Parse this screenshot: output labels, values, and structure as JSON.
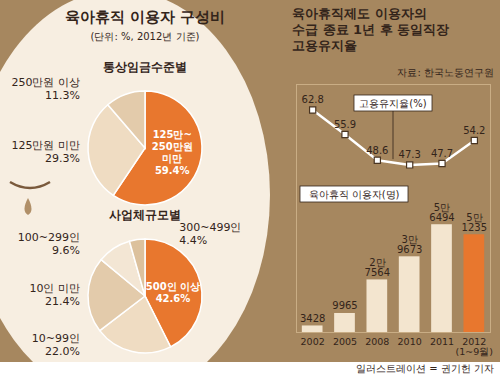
{
  "title": "육아휴직 이용자 구성비",
  "subtitle": "(단위: %, 2012년 기준)",
  "source": "자료: 한국노동연구원",
  "credit": "일러스트레이션 = 권기헌 기자",
  "chart_data": [
    {
      "type": "pie",
      "title": "통상임금수준별",
      "categories": [
        "125만~250만원 미만",
        "125만원 미만",
        "250만원 이상"
      ],
      "values": [
        59.4,
        29.3,
        11.3
      ],
      "value_labels": [
        "59.4%",
        "29.3%",
        "11.3%"
      ],
      "colors": [
        "#e8772e",
        "#efdcc2",
        "#e3cbab"
      ],
      "data_labels": true
    },
    {
      "type": "pie",
      "title": "사업체규모별",
      "categories": [
        "500인 이상",
        "10~99인",
        "10인 미만",
        "100~299인",
        "300~499인"
      ],
      "values": [
        42.6,
        22.0,
        21.4,
        9.6,
        4.4
      ],
      "value_labels": [
        "42.6%",
        "22.0%",
        "21.4%",
        "9.6%",
        "4.4%"
      ],
      "colors": [
        "#e8772e",
        "#efdcc2",
        "#e3cbab",
        "#f3e6d4",
        "#dcc19d"
      ],
      "data_labels": true
    },
    {
      "type": "bar",
      "title": "육아휴직제도 이용자의 수급 종료 1년 후 동일직장 고용유지율",
      "categories": [
        "2002",
        "2005",
        "2008",
        "2010",
        "2011",
        "2012 (1~9월)"
      ],
      "series": [
        {
          "name": "육아휴직 이용자(명)",
          "type": "bar",
          "values": [
            3428,
            9965,
            27564,
            39673,
            56494,
            51235
          ],
          "value_labels": [
            "3428",
            "9965",
            "2만 7564",
            "3만 9673",
            "5만 6494",
            "5만 1235"
          ],
          "colors": [
            "#f3e5cf",
            "#f3e5cf",
            "#f3e5cf",
            "#f3e5cf",
            "#f3e5cf",
            "#e8772e"
          ]
        },
        {
          "name": "고용유지율(%)",
          "type": "line",
          "axis": "y2",
          "values": [
            62.8,
            55.9,
            48.6,
            47.3,
            47.7,
            54.2
          ],
          "color": "#ffffff",
          "marker": "square"
        }
      ],
      "ylim": [
        0,
        130000
      ],
      "yticks": [],
      "y2lim": [
        0,
        70
      ],
      "y2ticks": [],
      "data_labels": true,
      "tick_labels": "x"
    }
  ]
}
